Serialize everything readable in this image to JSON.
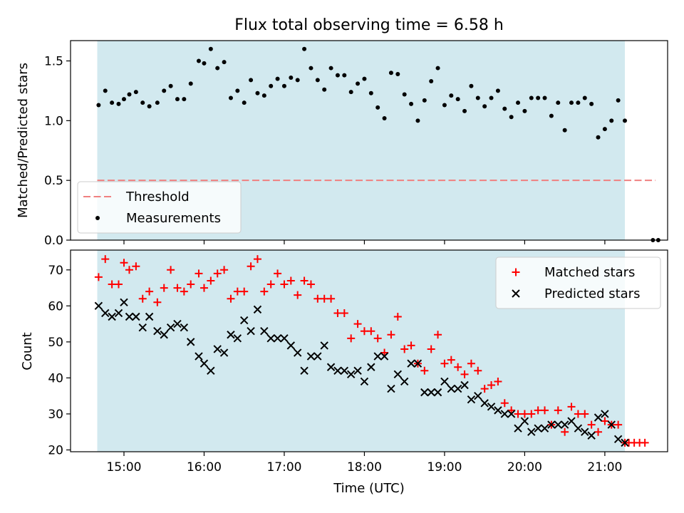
{
  "title": "Flux total observing time = 6.58 h",
  "chart_data": [
    {
      "type": "scatter",
      "ylabel": "Matched/Predicted stars",
      "xlabel": "",
      "xlim": [
        "14:20",
        "21:47"
      ],
      "ylim": [
        0,
        1.67
      ],
      "yticks": [
        0.0,
        0.5,
        1.0,
        1.5
      ],
      "ytick_labels": [
        "0.0",
        "0.5",
        "1.0",
        "1.5"
      ],
      "xticks": [
        "15:00",
        "16:00",
        "17:00",
        "18:00",
        "19:00",
        "20:00",
        "21:00"
      ],
      "shaded_interval": {
        "from": "14:40",
        "to": "21:15",
        "color": "#d2e9ef"
      },
      "threshold": {
        "name": "Threshold",
        "value": 0.5,
        "x_from": "14:40",
        "x_to": "21:38",
        "color": "#f08080"
      },
      "legend": {
        "location": "lower left",
        "entries": [
          "Threshold",
          "Measurements"
        ]
      },
      "series": [
        {
          "name": "Measurements",
          "marker": "dot",
          "color": "#000000",
          "points": [
            [
              "14:41",
              1.13
            ],
            [
              "14:46",
              1.25
            ],
            [
              "14:51",
              1.15
            ],
            [
              "14:56",
              1.14
            ],
            [
              "15:00",
              1.18
            ],
            [
              "15:04",
              1.22
            ],
            [
              "15:09",
              1.24
            ],
            [
              "15:14",
              1.15
            ],
            [
              "15:19",
              1.12
            ],
            [
              "15:25",
              1.15
            ],
            [
              "15:30",
              1.25
            ],
            [
              "15:35",
              1.29
            ],
            [
              "15:40",
              1.18
            ],
            [
              "15:45",
              1.18
            ],
            [
              "15:50",
              1.31
            ],
            [
              "15:56",
              1.5
            ],
            [
              "16:00",
              1.48
            ],
            [
              "16:05",
              1.6
            ],
            [
              "16:10",
              1.44
            ],
            [
              "16:15",
              1.49
            ],
            [
              "16:20",
              1.19
            ],
            [
              "16:25",
              1.25
            ],
            [
              "16:30",
              1.15
            ],
            [
              "16:35",
              1.34
            ],
            [
              "16:40",
              1.23
            ],
            [
              "16:45",
              1.21
            ],
            [
              "16:50",
              1.29
            ],
            [
              "16:55",
              1.35
            ],
            [
              "17:00",
              1.29
            ],
            [
              "17:05",
              1.36
            ],
            [
              "17:10",
              1.34
            ],
            [
              "17:15",
              1.6
            ],
            [
              "17:20",
              1.44
            ],
            [
              "17:25",
              1.34
            ],
            [
              "17:30",
              1.26
            ],
            [
              "17:35",
              1.44
            ],
            [
              "17:40",
              1.38
            ],
            [
              "17:45",
              1.38
            ],
            [
              "17:50",
              1.24
            ],
            [
              "17:55",
              1.31
            ],
            [
              "18:00",
              1.35
            ],
            [
              "18:05",
              1.23
            ],
            [
              "18:10",
              1.11
            ],
            [
              "18:15",
              1.02
            ],
            [
              "18:20",
              1.4
            ],
            [
              "18:25",
              1.39
            ],
            [
              "18:30",
              1.22
            ],
            [
              "18:35",
              1.14
            ],
            [
              "18:40",
              1.0
            ],
            [
              "18:45",
              1.17
            ],
            [
              "18:50",
              1.33
            ],
            [
              "18:55",
              1.44
            ],
            [
              "19:00",
              1.13
            ],
            [
              "19:05",
              1.21
            ],
            [
              "19:10",
              1.18
            ],
            [
              "19:15",
              1.08
            ],
            [
              "19:20",
              1.29
            ],
            [
              "19:25",
              1.19
            ],
            [
              "19:30",
              1.12
            ],
            [
              "19:35",
              1.19
            ],
            [
              "19:40",
              1.25
            ],
            [
              "19:45",
              1.1
            ],
            [
              "19:50",
              1.03
            ],
            [
              "19:55",
              1.15
            ],
            [
              "20:00",
              1.08
            ],
            [
              "20:05",
              1.19
            ],
            [
              "20:10",
              1.19
            ],
            [
              "20:15",
              1.19
            ],
            [
              "20:20",
              1.04
            ],
            [
              "20:25",
              1.15
            ],
            [
              "20:30",
              0.92
            ],
            [
              "20:35",
              1.15
            ],
            [
              "20:40",
              1.15
            ],
            [
              "20:45",
              1.19
            ],
            [
              "20:50",
              1.14
            ],
            [
              "20:55",
              0.86
            ],
            [
              "21:00",
              0.93
            ],
            [
              "21:05",
              1.0
            ],
            [
              "21:10",
              1.17
            ],
            [
              "21:15",
              1.0
            ],
            [
              "21:36",
              0.0
            ],
            [
              "21:40",
              0.0
            ]
          ]
        }
      ]
    },
    {
      "type": "scatter",
      "ylabel": "Count",
      "xlabel": "Time (UTC)",
      "xlim": [
        "14:20",
        "21:47"
      ],
      "ylim": [
        19.5,
        75.5
      ],
      "yticks": [
        20,
        30,
        40,
        50,
        60,
        70
      ],
      "ytick_labels": [
        "20",
        "30",
        "40",
        "50",
        "60",
        "70"
      ],
      "xticks": [
        "15:00",
        "16:00",
        "17:00",
        "18:00",
        "19:00",
        "20:00",
        "21:00"
      ],
      "xtick_labels": [
        "15:00",
        "16:00",
        "17:00",
        "18:00",
        "19:00",
        "20:00",
        "21:00"
      ],
      "shaded_interval": {
        "from": "14:40",
        "to": "21:15",
        "color": "#d2e9ef"
      },
      "legend": {
        "location": "upper right",
        "entries": [
          "Matched stars",
          "Predicted stars"
        ]
      },
      "series": [
        {
          "name": "Matched stars",
          "marker": "plus",
          "color": "#ff0000",
          "points": [
            [
              "14:41",
              68
            ],
            [
              "14:46",
              73
            ],
            [
              "14:51",
              66
            ],
            [
              "14:56",
              66
            ],
            [
              "15:00",
              72
            ],
            [
              "15:04",
              70
            ],
            [
              "15:09",
              71
            ],
            [
              "15:14",
              62
            ],
            [
              "15:19",
              64
            ],
            [
              "15:25",
              61
            ],
            [
              "15:30",
              65
            ],
            [
              "15:35",
              70
            ],
            [
              "15:40",
              65
            ],
            [
              "15:45",
              64
            ],
            [
              "15:50",
              66
            ],
            [
              "15:56",
              69
            ],
            [
              "16:00",
              65
            ],
            [
              "16:05",
              67
            ],
            [
              "16:10",
              69
            ],
            [
              "16:15",
              70
            ],
            [
              "16:20",
              62
            ],
            [
              "16:25",
              64
            ],
            [
              "16:30",
              64
            ],
            [
              "16:35",
              71
            ],
            [
              "16:40",
              73
            ],
            [
              "16:45",
              64
            ],
            [
              "16:50",
              66
            ],
            [
              "16:55",
              69
            ],
            [
              "17:00",
              66
            ],
            [
              "17:05",
              67
            ],
            [
              "17:10",
              63
            ],
            [
              "17:15",
              67
            ],
            [
              "17:20",
              66
            ],
            [
              "17:25",
              62
            ],
            [
              "17:30",
              62
            ],
            [
              "17:35",
              62
            ],
            [
              "17:40",
              58
            ],
            [
              "17:45",
              58
            ],
            [
              "17:50",
              51
            ],
            [
              "17:55",
              55
            ],
            [
              "18:00",
              53
            ],
            [
              "18:05",
              53
            ],
            [
              "18:10",
              51
            ],
            [
              "18:15",
              47
            ],
            [
              "18:20",
              52
            ],
            [
              "18:25",
              57
            ],
            [
              "18:30",
              48
            ],
            [
              "18:35",
              49
            ],
            [
              "18:40",
              44
            ],
            [
              "18:45",
              42
            ],
            [
              "18:50",
              48
            ],
            [
              "18:55",
              52
            ],
            [
              "19:00",
              44
            ],
            [
              "19:05",
              45
            ],
            [
              "19:10",
              43
            ],
            [
              "19:15",
              41
            ],
            [
              "19:20",
              44
            ],
            [
              "19:25",
              42
            ],
            [
              "19:30",
              37
            ],
            [
              "19:35",
              38
            ],
            [
              "19:40",
              39
            ],
            [
              "19:45",
              33
            ],
            [
              "19:50",
              31
            ],
            [
              "19:55",
              30
            ],
            [
              "20:00",
              30
            ],
            [
              "20:05",
              30
            ],
            [
              "20:10",
              31
            ],
            [
              "20:15",
              31
            ],
            [
              "20:20",
              27
            ],
            [
              "20:25",
              31
            ],
            [
              "20:30",
              25
            ],
            [
              "20:35",
              32
            ],
            [
              "20:40",
              30
            ],
            [
              "20:45",
              30
            ],
            [
              "20:50",
              27
            ],
            [
              "20:55",
              25
            ],
            [
              "21:00",
              28
            ],
            [
              "21:05",
              27
            ],
            [
              "21:10",
              27
            ],
            [
              "21:15",
              22
            ],
            [
              "21:18",
              22
            ],
            [
              "21:22",
              22
            ],
            [
              "21:26",
              22
            ],
            [
              "21:30",
              22
            ]
          ]
        },
        {
          "name": "Predicted stars",
          "marker": "x",
          "color": "#000000",
          "points": [
            [
              "14:41",
              60
            ],
            [
              "14:46",
              58
            ],
            [
              "14:51",
              57
            ],
            [
              "14:56",
              58
            ],
            [
              "15:00",
              61
            ],
            [
              "15:04",
              57
            ],
            [
              "15:09",
              57
            ],
            [
              "15:14",
              54
            ],
            [
              "15:19",
              57
            ],
            [
              "15:25",
              53
            ],
            [
              "15:30",
              52
            ],
            [
              "15:35",
              54
            ],
            [
              "15:40",
              55
            ],
            [
              "15:45",
              54
            ],
            [
              "15:50",
              50
            ],
            [
              "15:56",
              46
            ],
            [
              "16:00",
              44
            ],
            [
              "16:05",
              42
            ],
            [
              "16:10",
              48
            ],
            [
              "16:15",
              47
            ],
            [
              "16:20",
              52
            ],
            [
              "16:25",
              51
            ],
            [
              "16:30",
              56
            ],
            [
              "16:35",
              53
            ],
            [
              "16:40",
              59
            ],
            [
              "16:45",
              53
            ],
            [
              "16:50",
              51
            ],
            [
              "16:55",
              51
            ],
            [
              "17:00",
              51
            ],
            [
              "17:05",
              49
            ],
            [
              "17:10",
              47
            ],
            [
              "17:15",
              42
            ],
            [
              "17:20",
              46
            ],
            [
              "17:25",
              46
            ],
            [
              "17:30",
              49
            ],
            [
              "17:35",
              43
            ],
            [
              "17:40",
              42
            ],
            [
              "17:45",
              42
            ],
            [
              "17:50",
              41
            ],
            [
              "17:55",
              42
            ],
            [
              "18:00",
              39
            ],
            [
              "18:05",
              43
            ],
            [
              "18:10",
              46
            ],
            [
              "18:15",
              46
            ],
            [
              "18:20",
              37
            ],
            [
              "18:25",
              41
            ],
            [
              "18:30",
              39
            ],
            [
              "18:35",
              44
            ],
            [
              "18:40",
              44
            ],
            [
              "18:45",
              36
            ],
            [
              "18:50",
              36
            ],
            [
              "18:55",
              36
            ],
            [
              "19:00",
              39
            ],
            [
              "19:05",
              37
            ],
            [
              "19:10",
              37
            ],
            [
              "19:15",
              38
            ],
            [
              "19:20",
              34
            ],
            [
              "19:25",
              35
            ],
            [
              "19:30",
              33
            ],
            [
              "19:35",
              32
            ],
            [
              "19:40",
              31
            ],
            [
              "19:45",
              30
            ],
            [
              "19:50",
              30
            ],
            [
              "19:55",
              26
            ],
            [
              "20:00",
              28
            ],
            [
              "20:05",
              25
            ],
            [
              "20:10",
              26
            ],
            [
              "20:15",
              26
            ],
            [
              "20:20",
              27
            ],
            [
              "20:25",
              27
            ],
            [
              "20:30",
              27
            ],
            [
              "20:35",
              28
            ],
            [
              "20:40",
              26
            ],
            [
              "20:45",
              25
            ],
            [
              "20:50",
              24
            ],
            [
              "20:55",
              29
            ],
            [
              "21:00",
              30
            ],
            [
              "21:05",
              27
            ],
            [
              "21:10",
              23
            ],
            [
              "21:15",
              22
            ]
          ]
        }
      ]
    }
  ]
}
